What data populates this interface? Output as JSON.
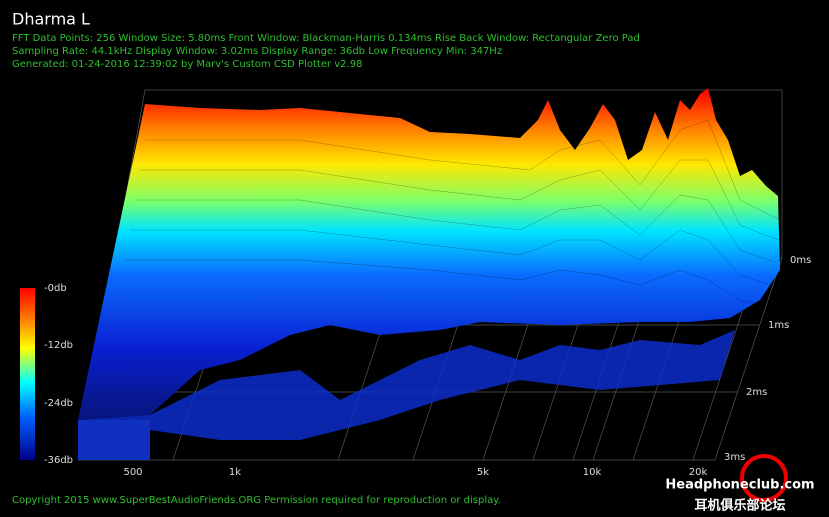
{
  "title": "Dharma L",
  "info": [
    "FFT Data Points: 256  Window Size: 5.80ms   Front Window: Blackman-Harris 0.134ms Rise   Back Window: Rectangular Zero Pad",
    "Sampling Rate: 44.1kHz  Display Window: 3.02ms   Display Range: 36db  Low Frequency Min: 347Hz",
    "Generated: 01-24-2016 12:39:02 by Marv's Custom CSD Plotter v2.98"
  ],
  "colorbar_labels": [
    "-0db",
    "-12db",
    "-24db",
    "-36db"
  ],
  "frequency_labels": [
    "500",
    "1k",
    "5k",
    "10k",
    "20k"
  ],
  "time_labels": [
    "0ms",
    "1ms",
    "2ms",
    "3ms"
  ],
  "copyright": "Copyright 2015 www.SuperBestAudioFriends.ORG Permission required for reproduction or display.",
  "watermark": {
    "site": "Headphoneclub.com",
    "subtitle": "耳机俱乐部论坛"
  }
}
